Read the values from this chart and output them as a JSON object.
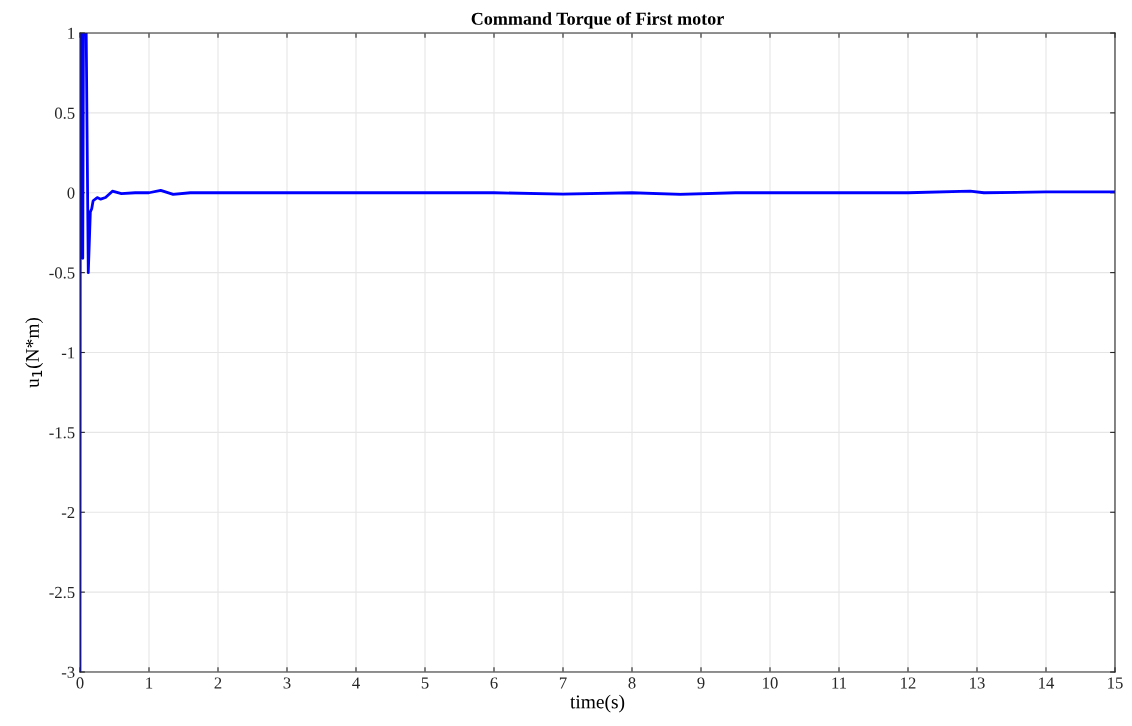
{
  "chart_data": {
    "type": "line",
    "title": "Command Torque of First motor",
    "xlabel": "time(s)",
    "ylabel": "u$_{1}$(N*m)",
    "x": [
      0,
      0.005,
      0.015,
      0.025,
      0.04,
      0.05,
      0.07,
      0.09,
      0.12,
      0.15,
      0.17,
      0.19,
      0.25,
      0.3,
      0.37,
      0.47,
      0.6,
      0.8,
      1.0,
      1.17,
      1.35,
      1.6,
      3,
      6,
      7,
      8,
      8.7,
      9.5,
      12,
      12.9,
      13.1,
      14,
      15
    ],
    "series": [
      {
        "color": "#0000ff",
        "values": [
          -3,
          1,
          -0.4,
          1,
          -0.41,
          1,
          1,
          1,
          -0.5,
          -0.12,
          -0.1,
          -0.05,
          -0.03,
          -0.04,
          -0.03,
          0.01,
          -0.005,
          0,
          0,
          0.015,
          -0.01,
          0,
          0,
          0,
          -0.008,
          0,
          -0.01,
          0,
          0,
          0.01,
          0,
          0.005,
          0.005
        ]
      }
    ],
    "xlim": [
      0,
      15
    ],
    "xticks": [
      0,
      1,
      2,
      3,
      4,
      5,
      6,
      7,
      8,
      9,
      10,
      11,
      12,
      13,
      14,
      15
    ],
    "ylim": [
      -3,
      1
    ],
    "yticks": [
      -3,
      -2.5,
      -2,
      -1.5,
      -1,
      -0.5,
      0,
      0.5,
      1
    ],
    "grid": true,
    "line_style": "solid",
    "marker": "none"
  }
}
